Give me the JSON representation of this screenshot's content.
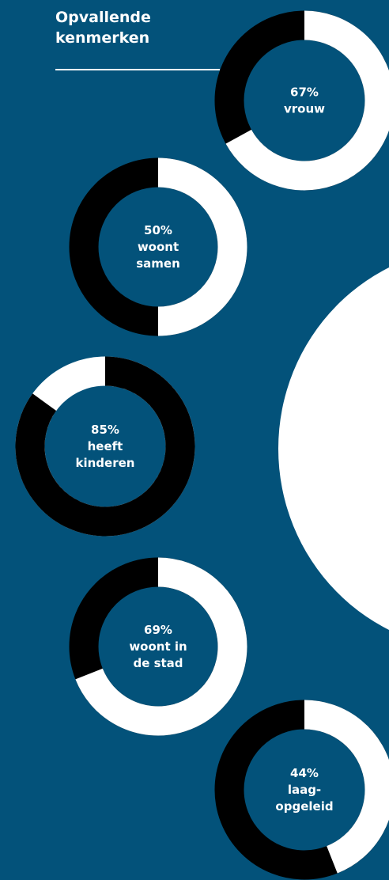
{
  "header": {
    "title_line1": "Opvallende",
    "title_line2": "kenmerken"
  },
  "colors": {
    "background": "#03527a",
    "share": "#ffffff",
    "remainder": "#000000",
    "text": "#ffffff"
  },
  "chart_data": [
    {
      "type": "pie",
      "title": "",
      "percent": 67,
      "lines": [
        "67%",
        "vrouw"
      ]
    },
    {
      "type": "pie",
      "title": "",
      "percent": 50,
      "lines": [
        "50%",
        "woont",
        "samen"
      ]
    },
    {
      "type": "pie",
      "title": "",
      "percent": 85,
      "lines": [
        "85%",
        "heeft",
        "kinderen"
      ],
      "share_is_dark": true
    },
    {
      "type": "pie",
      "title": "",
      "percent": 69,
      "lines": [
        "69%",
        "woont in",
        "de  stad"
      ]
    },
    {
      "type": "pie",
      "title": "",
      "percent": 44,
      "lines": [
        "44%",
        "laag-",
        "opgeleid"
      ]
    }
  ]
}
